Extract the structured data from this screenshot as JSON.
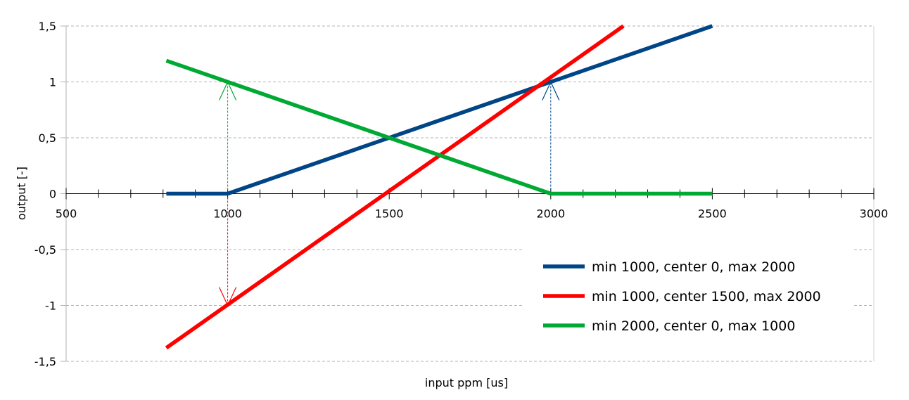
{
  "chart_data": {
    "type": "line",
    "xlabel": "input ppm [us]",
    "ylabel": "output [-]",
    "xlim": [
      500,
      3000
    ],
    "ylim": [
      -1.5,
      1.5
    ],
    "x_ticks": [
      500,
      1000,
      1500,
      2000,
      2500,
      3000
    ],
    "x_tick_labels": [
      "500",
      "1000",
      "1500",
      "2000",
      "2500",
      "3000"
    ],
    "y_ticks": [
      1.5,
      1,
      0.5,
      0,
      -0.5,
      -1,
      -1.5
    ],
    "y_tick_labels": [
      "1,5",
      "1",
      "0,5",
      "0",
      "-0,5",
      "-1",
      "-1,5"
    ],
    "grid": "horizontal-dashed",
    "legend_position": "bottom-right",
    "series": [
      {
        "name": "min 1000, center 0, max 2000",
        "color": "#004586",
        "points": [
          [
            810,
            0
          ],
          [
            1000,
            0
          ],
          [
            2500,
            1.5
          ]
        ]
      },
      {
        "name": "min 1000, center 1500, max 2000",
        "color": "#ff0000",
        "points": [
          [
            810,
            -1.38
          ],
          [
            2225,
            1.5
          ]
        ]
      },
      {
        "name": "min 2000, center 0, max 1000",
        "color": "#00a933",
        "points": [
          [
            810,
            1.19
          ],
          [
            2000,
            0
          ],
          [
            2500,
            0
          ]
        ]
      }
    ],
    "annotations": [
      {
        "type": "arrow",
        "x": 1000,
        "from_y": 0,
        "to_y": 1,
        "color": "#00a933"
      },
      {
        "type": "arrow",
        "x": 2000,
        "from_y": 0,
        "to_y": 1,
        "color": "#004586"
      },
      {
        "type": "arrow",
        "x": 1000,
        "from_y": 0,
        "to_y": -1,
        "color": "#ff0000"
      }
    ]
  }
}
